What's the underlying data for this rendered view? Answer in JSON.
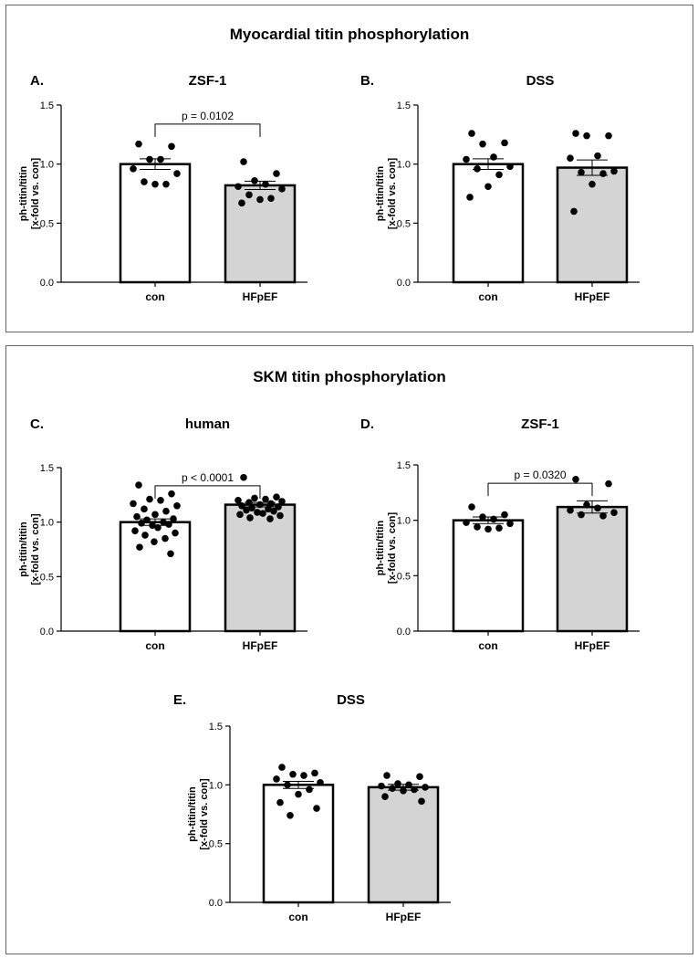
{
  "figure": {
    "top_title": "Myocardial titin phosphorylation",
    "bottom_title": "SKM titin phosphorylation"
  },
  "chart_data": [
    {
      "id": "A",
      "type": "bar",
      "panel_label": "A.",
      "title": "ZSF-1",
      "ylabel": [
        "ph-titin/titin",
        "[x-fold vs. con]"
      ],
      "categories": [
        "con",
        "HFpEF"
      ],
      "values": [
        1.0,
        0.82
      ],
      "sem": [
        0.045,
        0.035
      ],
      "ylim": [
        0,
        1.5
      ],
      "yticks": [
        "0.0",
        "0.5",
        "1.0",
        "1.5"
      ],
      "points": [
        [
          1.17,
          1.15,
          1.04,
          1.04,
          0.96,
          0.92,
          0.85,
          0.83,
          0.83
        ],
        [
          1.02,
          0.92,
          0.86,
          0.83,
          0.81,
          0.79,
          0.74,
          0.71,
          0.7,
          0.67
        ]
      ],
      "significance": "p = 0.0102"
    },
    {
      "id": "B",
      "type": "bar",
      "panel_label": "B.",
      "title": "DSS",
      "ylabel": [
        "ph-titin/titin",
        "[x-fold vs. con]"
      ],
      "categories": [
        "con",
        "HFpEF"
      ],
      "values": [
        1.0,
        0.97
      ],
      "sem": [
        0.045,
        0.065
      ],
      "ylim": [
        0,
        1.5
      ],
      "yticks": [
        "0.0",
        "0.5",
        "1.0",
        "1.5"
      ],
      "points": [
        [
          1.26,
          1.18,
          1.17,
          1.06,
          1.04,
          0.98,
          0.96,
          0.91,
          0.81,
          0.72
        ],
        [
          1.26,
          1.24,
          1.24,
          1.07,
          1.05,
          0.94,
          0.93,
          0.92,
          0.83,
          0.6
        ]
      ],
      "significance": ""
    },
    {
      "id": "C",
      "type": "bar",
      "panel_label": "C.",
      "title": "human",
      "ylabel": [
        "ph-titin/titin",
        "[x-fold vs. con]"
      ],
      "categories": [
        "con",
        "HFpEF"
      ],
      "values": [
        1.0,
        1.16
      ],
      "sem": [
        0.03,
        0.02
      ],
      "ylim": [
        0,
        1.5
      ],
      "yticks": [
        "0.0",
        "0.5",
        "1.0",
        "1.5"
      ],
      "points": [
        [
          1.34,
          1.26,
          1.21,
          1.2,
          1.17,
          1.15,
          1.12,
          1.1,
          1.07,
          1.05,
          1.03,
          1.02,
          1.0,
          0.99,
          0.98,
          0.97,
          0.95,
          0.92,
          0.9,
          0.88,
          0.85,
          0.82,
          0.77,
          0.71
        ],
        [
          1.41,
          1.23,
          1.22,
          1.21,
          1.2,
          1.19,
          1.18,
          1.17,
          1.16,
          1.15,
          1.14,
          1.13,
          1.12,
          1.11,
          1.1,
          1.09,
          1.08,
          1.07,
          1.06,
          1.04,
          1.03
        ]
      ],
      "significance": "p < 0.0001"
    },
    {
      "id": "D",
      "type": "bar",
      "panel_label": "D.",
      "title": "ZSF-1",
      "ylabel": [
        "ph-titin/titin",
        "[x-fold vs. con]"
      ],
      "categories": [
        "con",
        "HFpEF"
      ],
      "values": [
        1.0,
        1.12
      ],
      "sem": [
        0.03,
        0.055
      ],
      "ylim": [
        0,
        1.5
      ],
      "yticks": [
        "0.0",
        "0.5",
        "1.0",
        "1.5"
      ],
      "points": [
        [
          1.12,
          1.05,
          1.03,
          1.01,
          0.98,
          0.97,
          0.94,
          0.93,
          0.92
        ],
        [
          1.37,
          1.33,
          1.14,
          1.11,
          1.09,
          1.07,
          1.05,
          1.04
        ]
      ],
      "significance": "p = 0.0320"
    },
    {
      "id": "E",
      "type": "bar",
      "panel_label": "E.",
      "title": "DSS",
      "ylabel": [
        "ph-titin/titin",
        "[x-fold vs. con]"
      ],
      "categories": [
        "con",
        "HFpEF"
      ],
      "values": [
        1.0,
        0.98
      ],
      "sem": [
        0.03,
        0.025
      ],
      "ylim": [
        0,
        1.5
      ],
      "yticks": [
        "0.0",
        "0.5",
        "1.0",
        "1.5"
      ],
      "points": [
        [
          1.15,
          1.1,
          1.09,
          1.08,
          1.05,
          1.02,
          1.0,
          0.96,
          0.92,
          0.85,
          0.8,
          0.74
        ],
        [
          1.08,
          1.07,
          1.01,
          1.0,
          0.99,
          0.98,
          0.97,
          0.96,
          0.95,
          0.9,
          0.86
        ]
      ],
      "significance": ""
    }
  ]
}
